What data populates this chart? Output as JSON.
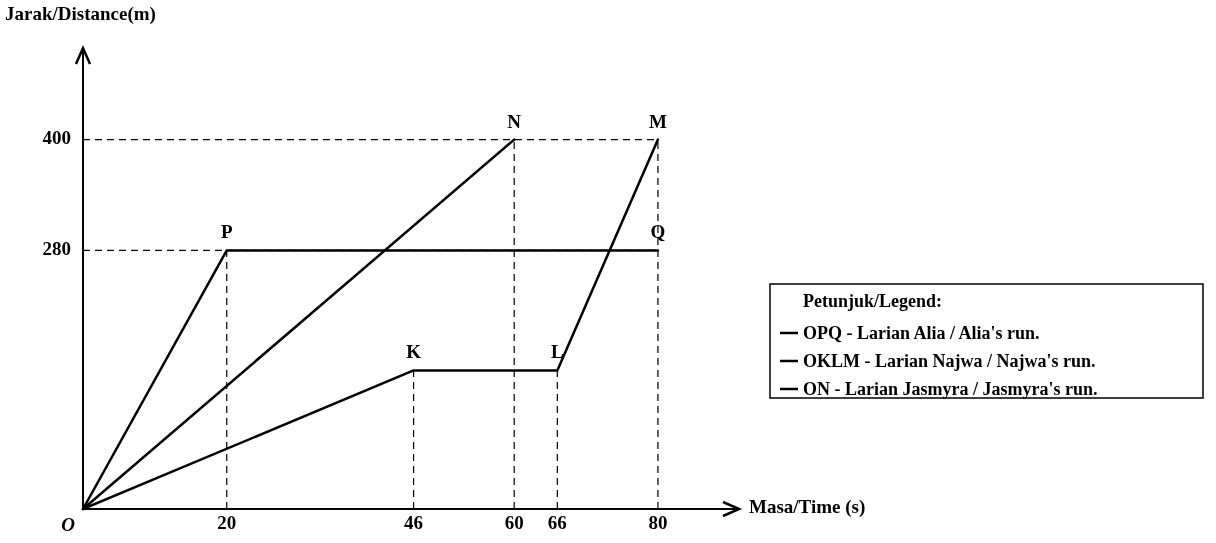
{
  "chart_data": {
    "type": "line",
    "xlabel": "Masa/Time (s)",
    "ylabel": "Jarak/Distance(m)",
    "legend_title": "Petunjuk/Legend:",
    "legend": "right",
    "grid": true,
    "marker": "none",
    "xlim": [
      0,
      91
    ],
    "ylim": [
      0,
      497
    ],
    "xticks": [
      20,
      46,
      60,
      66,
      80
    ],
    "yticks": [
      280,
      400
    ],
    "series": [
      {
        "name": "OPQ - Larian Alia / Alia's run.",
        "color": "#000000",
        "x": [
          0,
          20,
          80
        ],
        "values": [
          0,
          280,
          280
        ]
      },
      {
        "name": "OKLM - Larian Najwa / Najwa's run.",
        "color": "#000000",
        "x": [
          0,
          46,
          66,
          80
        ],
        "values": [
          0,
          150,
          150,
          400
        ]
      },
      {
        "name": "ON - Larian Jasmyra / Jasmyra's run.",
        "color": "#000000",
        "x": [
          0,
          60
        ],
        "values": [
          0,
          400
        ]
      }
    ],
    "annotations": [
      {
        "text": "O",
        "x": 0,
        "y": 0
      },
      {
        "text": "P",
        "x": 20,
        "y": 280
      },
      {
        "text": "Q",
        "x": 80,
        "y": 280
      },
      {
        "text": "K",
        "x": 46,
        "y": 150
      },
      {
        "text": "L",
        "x": 66,
        "y": 150
      },
      {
        "text": "N",
        "x": 60,
        "y": 400
      },
      {
        "text": "M",
        "x": 80,
        "y": 400
      }
    ]
  }
}
